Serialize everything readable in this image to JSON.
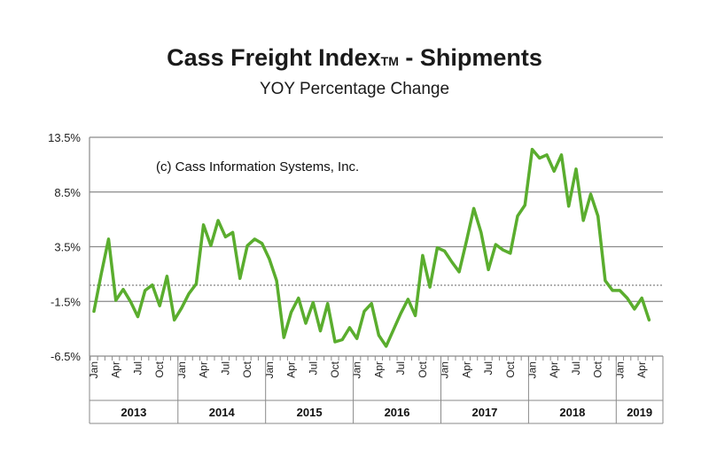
{
  "chart_data": {
    "type": "line",
    "title": "Cass Freight Index",
    "title_mark": "TM",
    "title_suffix": " - Shipments",
    "subtitle": "YOY Percentage Change",
    "annotation": "(c) Cass Information Systems, Inc.",
    "ylim": [
      -6.5,
      13.5
    ],
    "y_ticks": [
      {
        "value": 13.5,
        "label": "13.5%"
      },
      {
        "value": 8.5,
        "label": "8.5%"
      },
      {
        "value": 3.5,
        "label": "3.5%"
      },
      {
        "value": -1.5,
        "label": "-1.5%"
      },
      {
        "value": -6.5,
        "label": "-6.5%"
      }
    ],
    "x_tick_labels": [
      "Jan",
      "Apr",
      "Jul",
      "Oct"
    ],
    "years": [
      "2013",
      "2014",
      "2015",
      "2016",
      "2017",
      "2018",
      "2019"
    ],
    "line_color": "#5aad2e",
    "grid": true,
    "series": [
      {
        "values": [
          -2.4,
          1.0,
          4.2,
          -1.4,
          -0.4,
          -1.5,
          -2.9,
          -0.5,
          0.0,
          -1.9,
          0.8,
          -3.2,
          -2.1,
          -0.8,
          0.1,
          5.5,
          3.6,
          5.9,
          4.4,
          4.8,
          0.6,
          3.6,
          4.2,
          3.8,
          2.4,
          0.4,
          -4.8,
          -2.5,
          -1.2,
          -3.5,
          -1.6,
          -4.2,
          -1.7,
          -5.2,
          -5.0,
          -3.9,
          -4.9,
          -2.4,
          -1.7,
          -4.6,
          -5.6,
          -4.1,
          -2.6,
          -1.3,
          -2.8,
          2.7,
          -0.2,
          3.4,
          3.1,
          2.1,
          1.2,
          4.0,
          7.0,
          4.8,
          1.4,
          3.7,
          3.2,
          2.9,
          6.3,
          7.3,
          12.4,
          11.6,
          11.9,
          10.4,
          11.9,
          7.2,
          10.6,
          5.9,
          8.3,
          6.3,
          0.4,
          -0.5,
          -0.5,
          -1.2,
          -2.2,
          -1.2,
          -3.2
        ]
      }
    ]
  }
}
